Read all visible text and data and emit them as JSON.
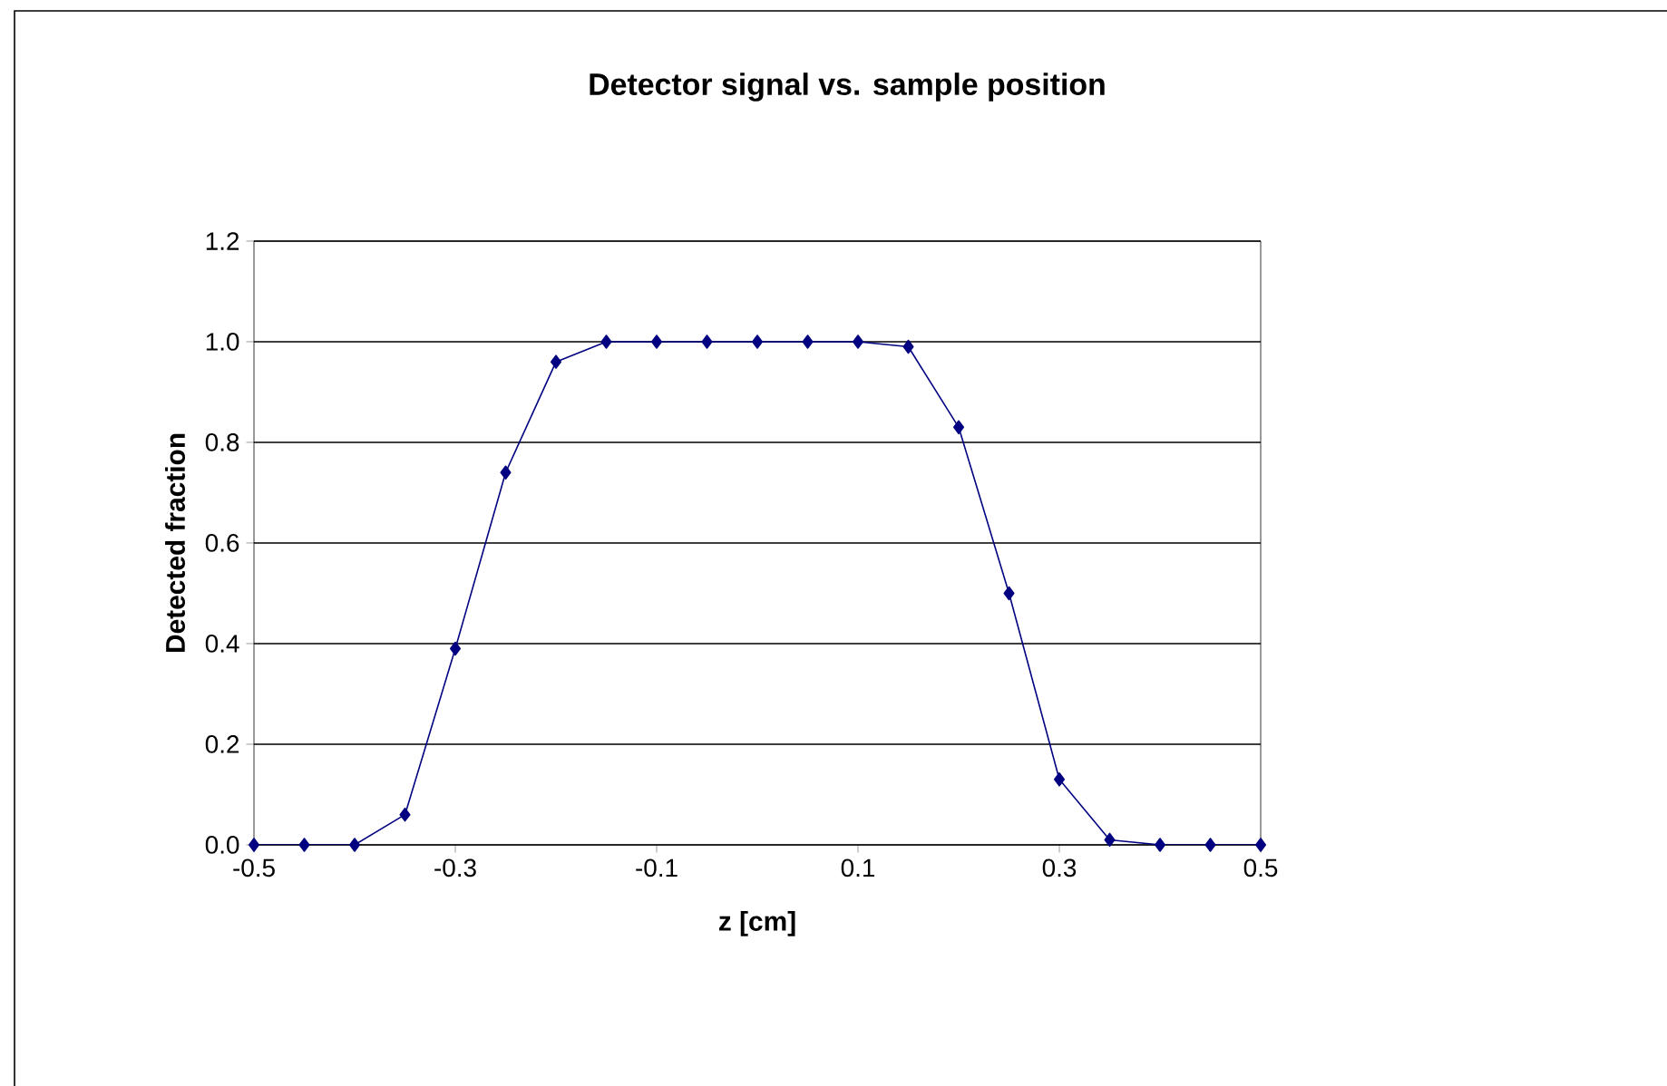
{
  "chart_data": {
    "type": "line",
    "title": "Detector signal vs. sample position",
    "xlabel": "z [cm]",
    "ylabel": "Detected fraction",
    "x": [
      -0.5,
      -0.45,
      -0.4,
      -0.35,
      -0.3,
      -0.25,
      -0.2,
      -0.15,
      -0.1,
      -0.05,
      0,
      0.05,
      0.1,
      0.15,
      0.2,
      0.25,
      0.3,
      0.35,
      0.4,
      0.45,
      0.5
    ],
    "series": [
      {
        "color": "#000080",
        "values": [
          0,
          0,
          0,
          0.06,
          0.39,
          0.74,
          0.96,
          1.0,
          1.0,
          1.0,
          1.0,
          1.0,
          1.0,
          0.99,
          0.83,
          0.5,
          0.13,
          0.01,
          0,
          0,
          0
        ]
      }
    ],
    "xlim": [
      -0.5,
      0.5
    ],
    "xticks": [
      -0.5,
      -0.3,
      -0.1,
      0.1,
      0.3,
      0.5
    ],
    "ylim": [
      0,
      1.2
    ],
    "yticks": [
      {
        "value": 0,
        "label": "0.0"
      },
      {
        "value": 0.2,
        "label": "0.2"
      },
      {
        "value": 0.4,
        "label": "0.4"
      },
      {
        "value": 0.6,
        "label": "0.6"
      },
      {
        "value": 0.8,
        "label": "0.8"
      },
      {
        "value": 1.0,
        "label": "1.0"
      },
      {
        "value": 1.2,
        "label": "1.2"
      }
    ],
    "grid": "y",
    "marker": "diamond",
    "line_style": "solid"
  }
}
